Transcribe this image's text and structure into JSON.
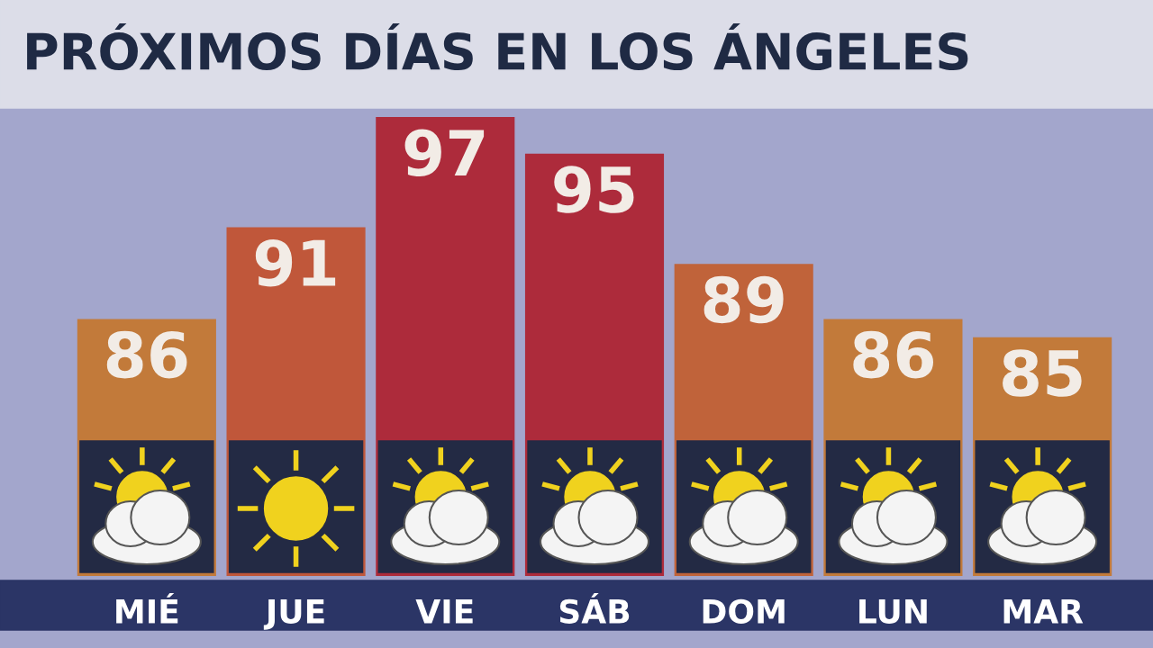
{
  "chart_data": {
    "type": "bar",
    "title": "PRÓXIMOS DÍAS EN LOS ÁNGELES",
    "categories": [
      "MIÉ",
      "JUE",
      "VIE",
      "SÁB",
      "DOM",
      "LUN",
      "MAR"
    ],
    "values": [
      86,
      91,
      97,
      95,
      89,
      86,
      85
    ],
    "colors": [
      "#c27a3a",
      "#c0573a",
      "#ad2b3b",
      "#ad2b3b",
      "#c0633a",
      "#c27a3a",
      "#c27a3a"
    ],
    "ylim": [
      72,
      97
    ],
    "data_labels": true,
    "tick_labels": "x",
    "grid": false
  }
}
